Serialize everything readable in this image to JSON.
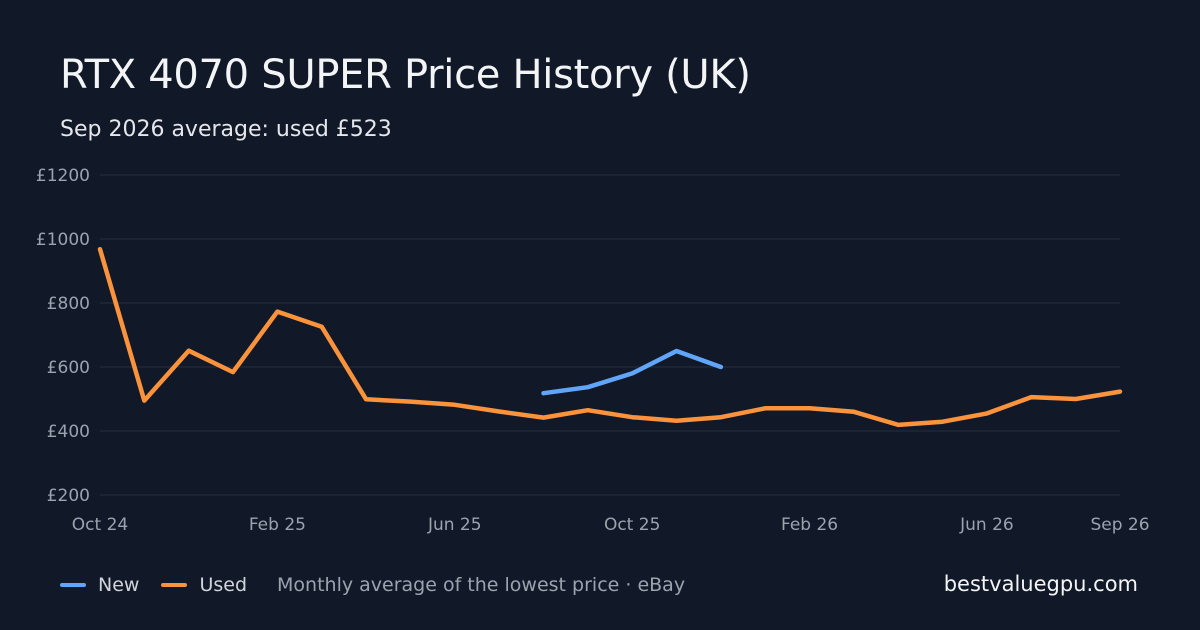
{
  "header": {
    "title": "RTX 4070 SUPER Price History (UK)",
    "subtitle": "Sep 2026 average: used £523"
  },
  "colors": {
    "background": "#111827",
    "grid": "#273142",
    "new": "#60a5fa",
    "used": "#fb923c",
    "axis_text": "#9ca3af"
  },
  "legend": {
    "new_label": "New",
    "used_label": "Used",
    "note": "Monthly average of the lowest price · eBay"
  },
  "brand": "bestvaluegpu.com",
  "chart_data": {
    "type": "line",
    "title": "RTX 4070 SUPER Price History (UK)",
    "subtitle": "Sep 2026 average: used £523",
    "x": [
      "2024-10",
      "2024-11",
      "2024-12",
      "2025-01",
      "2025-02",
      "2025-03",
      "2025-04",
      "2025-05",
      "2025-06",
      "2025-07",
      "2025-08",
      "2025-09",
      "2025-10",
      "2025-11",
      "2025-12",
      "2026-01",
      "2026-02",
      "2026-03",
      "2026-04",
      "2026-05",
      "2026-06",
      "2026-07",
      "2026-08",
      "2026-09"
    ],
    "x_ticks": [
      {
        "x": "2024-10",
        "label": "Oct 24"
      },
      {
        "x": "2025-02",
        "label": "Feb 25"
      },
      {
        "x": "2025-06",
        "label": "Jun 25"
      },
      {
        "x": "2025-10",
        "label": "Oct 25"
      },
      {
        "x": "2026-02",
        "label": "Feb 26"
      },
      {
        "x": "2026-06",
        "label": "Jun 26"
      },
      {
        "x": "2026-09",
        "label": "Sep 26"
      }
    ],
    "y_ticks": [
      {
        "value": 200,
        "label": "£200"
      },
      {
        "value": 400,
        "label": "£400"
      },
      {
        "value": 600,
        "label": "£600"
      },
      {
        "value": 800,
        "label": "£800"
      },
      {
        "value": 1000,
        "label": "£1000"
      },
      {
        "value": 1200,
        "label": "£1200"
      }
    ],
    "ylim": [
      200,
      1200
    ],
    "grid": true,
    "legend_position": "bottom-left",
    "series": [
      {
        "name": "New",
        "color": "#60a5fa",
        "values": [
          null,
          null,
          null,
          null,
          null,
          null,
          null,
          null,
          null,
          null,
          518,
          537,
          580,
          650,
          600,
          null,
          null,
          null,
          null,
          null,
          null,
          null,
          null,
          null
        ]
      },
      {
        "name": "Used",
        "color": "#fb923c",
        "values": [
          968,
          495,
          651,
          584,
          773,
          726,
          499,
          492,
          482,
          461,
          442,
          465,
          443,
          432,
          443,
          471,
          471,
          460,
          419,
          429,
          455,
          506,
          500,
          523
        ]
      }
    ]
  }
}
